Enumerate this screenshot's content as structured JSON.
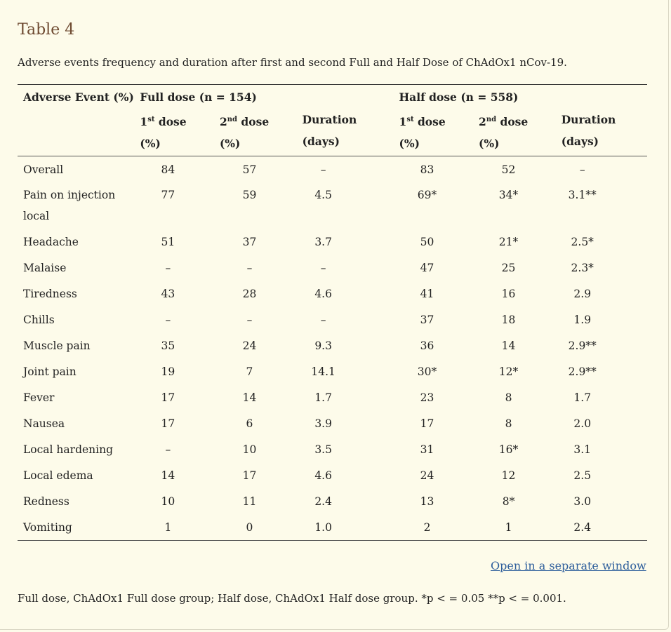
{
  "title": "Table 4",
  "caption": "Adverse events frequency and duration after first and second Full and Half Dose of ChAdOx1 nCov-19.",
  "header": {
    "event_col": "Adverse Event (%)",
    "full_group": "Full dose (n = 154)",
    "half_group": "Half dose (n = 558)",
    "dose1_num": "1",
    "dose1_sup": "st",
    "dose2_num": "2",
    "dose2_sup": "nd",
    "dose_word": " dose",
    "pct": "(%)",
    "duration": "Duration",
    "days": "(days)"
  },
  "rows": [
    {
      "event": "Overall",
      "f1": "84",
      "f2": "57",
      "fd": "–",
      "h1": "83",
      "h2": "52",
      "hd": "–"
    },
    {
      "event": "Pain on injection local",
      "f1": "77",
      "f2": "59",
      "fd": "4.5",
      "h1": "69*",
      "h2": "34*",
      "hd": "3.1**"
    },
    {
      "event": "Headache",
      "f1": "51",
      "f2": "37",
      "fd": "3.7",
      "h1": "50",
      "h2": "21*",
      "hd": "2.5*"
    },
    {
      "event": "Malaise",
      "f1": "–",
      "f2": "–",
      "fd": "–",
      "h1": "47",
      "h2": "25",
      "hd": "2.3*"
    },
    {
      "event": "Tiredness",
      "f1": "43",
      "f2": "28",
      "fd": "4.6",
      "h1": "41",
      "h2": "16",
      "hd": "2.9"
    },
    {
      "event": "Chills",
      "f1": "–",
      "f2": "–",
      "fd": "–",
      "h1": "37",
      "h2": "18",
      "hd": "1.9"
    },
    {
      "event": "Muscle pain",
      "f1": "35",
      "f2": "24",
      "fd": "9.3",
      "h1": "36",
      "h2": "14",
      "hd": "2.9**"
    },
    {
      "event": "Joint pain",
      "f1": "19",
      "f2": "7",
      "fd": "14.1",
      "h1": "30*",
      "h2": "12*",
      "hd": "2.9**"
    },
    {
      "event": "Fever",
      "f1": "17",
      "f2": "14",
      "fd": "1.7",
      "h1": "23",
      "h2": "8",
      "hd": "1.7"
    },
    {
      "event": "Nausea",
      "f1": "17",
      "f2": "6",
      "fd": "3.9",
      "h1": "17",
      "h2": "8",
      "hd": "2.0"
    },
    {
      "event": "Local hardening",
      "f1": "–",
      "f2": "10",
      "fd": "3.5",
      "h1": "31",
      "h2": "16*",
      "hd": "3.1"
    },
    {
      "event": "Local edema",
      "f1": "14",
      "f2": "17",
      "fd": "4.6",
      "h1": "24",
      "h2": "12",
      "hd": "2.5"
    },
    {
      "event": "Redness",
      "f1": "10",
      "f2": "11",
      "fd": "2.4",
      "h1": "13",
      "h2": "8*",
      "hd": "3.0"
    },
    {
      "event": "Vomiting",
      "f1": "1",
      "f2": "0",
      "fd": "1.0",
      "h1": "2",
      "h2": "1",
      "hd": "2.4"
    }
  ],
  "link_text": "Open in a separate window",
  "footnote": "Full dose, ChAdOx1 Full dose group; Half dose, ChAdOx1 Half dose group. *p < = 0.05 **p < = 0.001.",
  "colors": {
    "title": "#6e4a31",
    "link": "#2f5f9c",
    "background": "#fdfbea"
  }
}
